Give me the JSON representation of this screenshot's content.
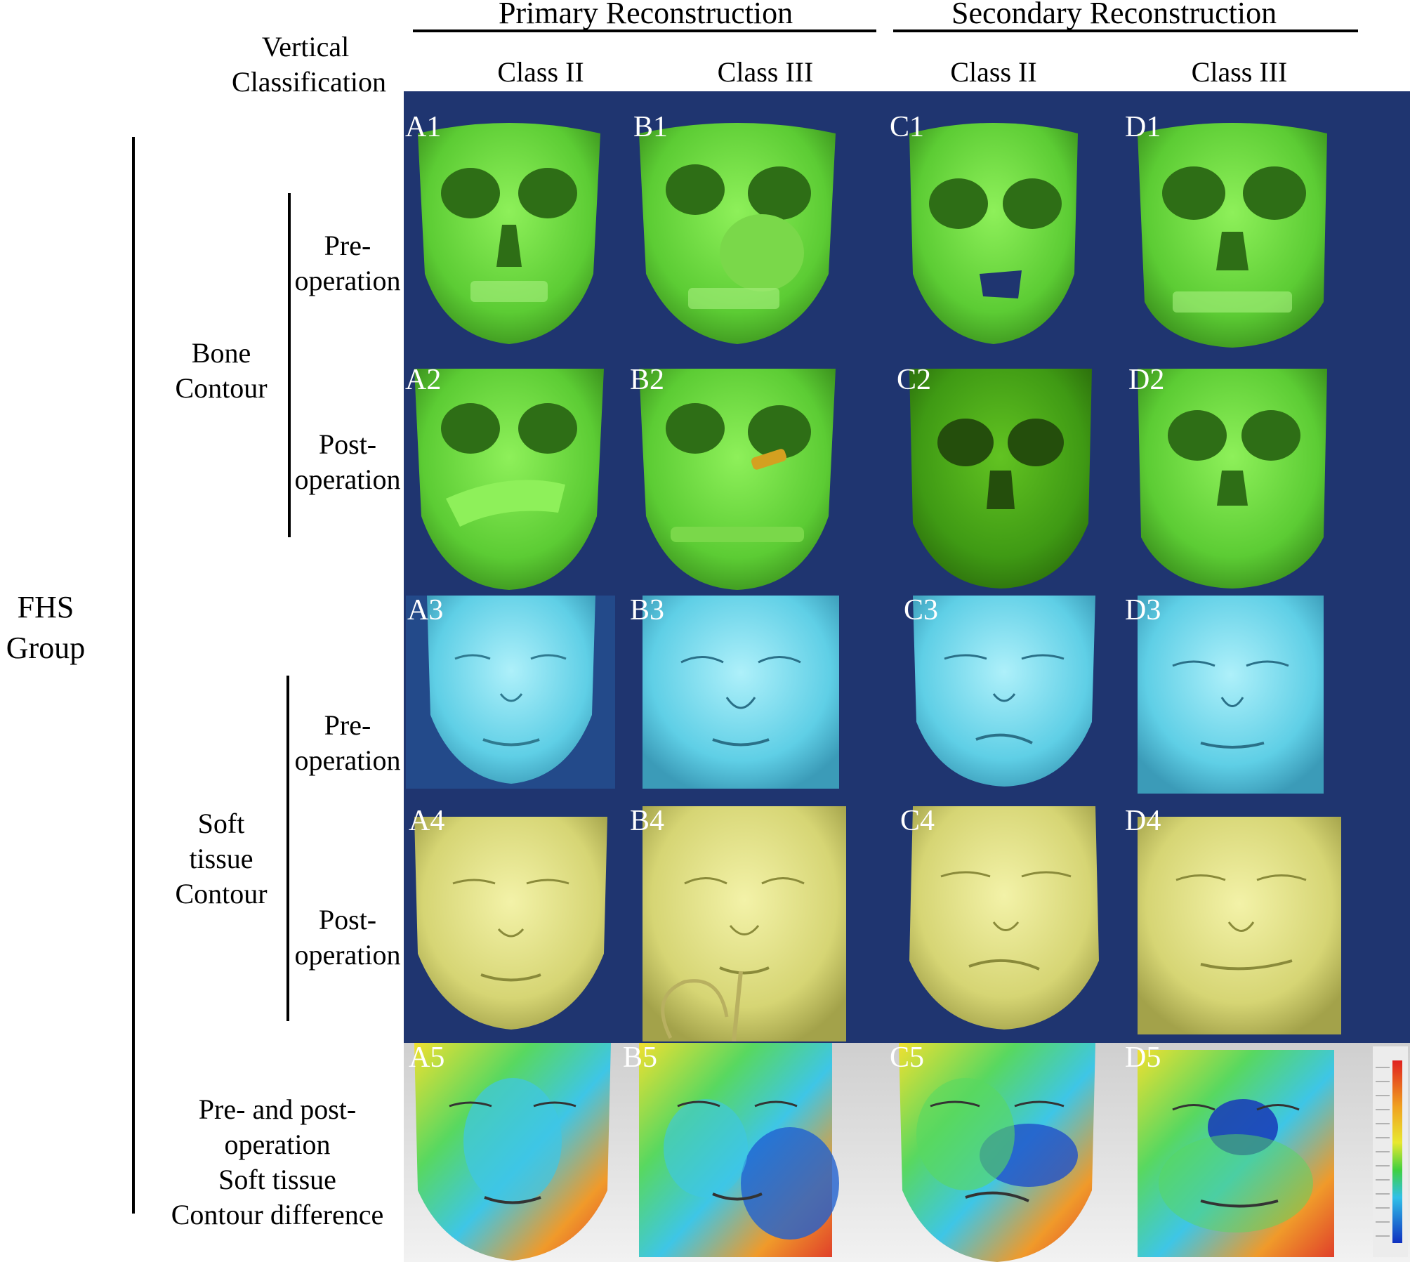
{
  "header": {
    "groups": [
      {
        "label": "Primary Reconstruction"
      },
      {
        "label": "Secondary Reconstruction"
      }
    ],
    "vertical_classification": [
      "Vertical",
      "Classification"
    ],
    "classes": [
      "Class II",
      "Class III",
      "Class II",
      "Class III"
    ]
  },
  "rows": {
    "group_label": [
      "FHS",
      "Group"
    ],
    "bone_contour": [
      "Bone",
      "Contour"
    ],
    "soft_tissue_contour": [
      "Soft",
      "tissue",
      "Contour"
    ],
    "pre_operation": [
      "Pre-",
      "operation"
    ],
    "post_operation": [
      "Post-",
      "operation"
    ],
    "difference": [
      "Pre- and post-",
      "operation",
      "Soft  tissue",
      "Contour difference"
    ]
  },
  "panel_labels": [
    [
      "A1",
      "B1",
      "C1",
      "D1"
    ],
    [
      "A2",
      "B2",
      "C2",
      "D2"
    ],
    [
      "A3",
      "B3",
      "C3",
      "D3"
    ],
    [
      "A4",
      "B4",
      "C4",
      "D4"
    ],
    [
      "A5",
      "B5",
      "C5",
      "D5"
    ]
  ],
  "colors": {
    "background_panel": "#1f3570",
    "bone": "#66d43c",
    "bone_dark": "#3f9a1f",
    "soft_pre": "#5fd0e6",
    "soft_post": "#d8d77a",
    "heatmap_gray": "#d9d9d9"
  }
}
